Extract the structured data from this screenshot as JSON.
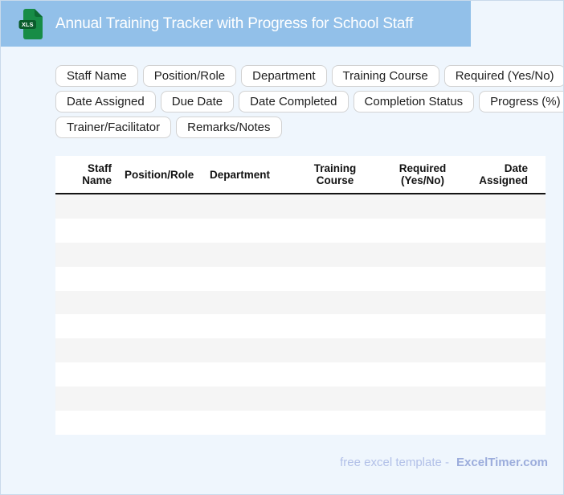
{
  "header": {
    "title": "Annual Training Tracker with Progress for School Staff",
    "file_badge": "XLS"
  },
  "chips": [
    "Staff Name",
    "Position/Role",
    "Department",
    "Training Course",
    "Required (Yes/No)",
    "Date Assigned",
    "Due Date",
    "Date Completed",
    "Completion Status",
    "Progress (%)",
    "Trainer/Facilitator",
    "Remarks/Notes"
  ],
  "table": {
    "columns": [
      {
        "label": "Staff Name",
        "align": "right"
      },
      {
        "label": "Position/Role",
        "align": "left"
      },
      {
        "label": "Department",
        "align": "left"
      },
      {
        "label": "Training Course",
        "align": "center"
      },
      {
        "label": "Required (Yes/No)",
        "align": "center"
      },
      {
        "label": "Date Assigned",
        "align": "right"
      }
    ],
    "empty_row_count": 10
  },
  "footer": {
    "text": "free excel template -",
    "brand": "ExcelTimer.com"
  },
  "colors": {
    "header_bar": "#92C0E9",
    "page_background": "#EFF6FD",
    "page_border": "#C9DAEB",
    "table_background": "#FFFFFF",
    "row_stripe": "#F5F5F5",
    "header_rule": "#141414",
    "chip_border": "#D2D2D2",
    "icon_document_green": "#178C46",
    "icon_fold_green": "#0D6B33",
    "icon_badge_green": "#0A5C2B",
    "footer_text": "#B2C0E8",
    "footer_brand": "#9CADDC"
  }
}
